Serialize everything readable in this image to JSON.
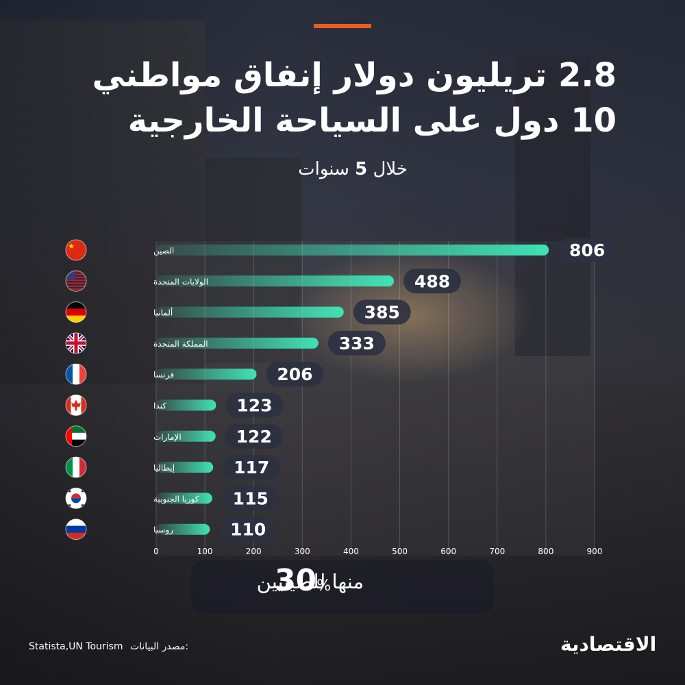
{
  "header": {
    "title_line1": "2.8 تريليون دولار إنفاق مواطني",
    "title_line2": "10 دول على السياحة الخارجية",
    "subtitle_prefix": "خلال",
    "subtitle_number": "5",
    "subtitle_suffix": "سنوات"
  },
  "colors": {
    "accent": "#ee5a24",
    "bar_end": "#3fe3b4",
    "bar_start": "rgba(63,227,180,0.15)",
    "value_pill": "#2c3140"
  },
  "chart_data": {
    "type": "bar",
    "orientation": "horizontal",
    "categories": [
      "الصين",
      "الولايات المتحدة",
      "ألمانيا",
      "المملكة المتحدة",
      "فرنسا",
      "كندا",
      "الإمارات",
      "إيطاليا",
      "كوريا الجنوبية",
      "روسيا"
    ],
    "flag_icons": [
      "china-flag-icon",
      "usa-flag-icon",
      "germany-flag-icon",
      "uk-flag-icon",
      "france-flag-icon",
      "canada-flag-icon",
      "uae-flag-icon",
      "italy-flag-icon",
      "south-korea-flag-icon",
      "russia-flag-icon"
    ],
    "values": [
      806,
      488,
      385,
      333,
      206,
      123,
      122,
      117,
      115,
      110
    ],
    "xlim": [
      0,
      900
    ],
    "xticks": [
      0,
      100,
      200,
      300,
      400,
      500,
      600,
      700,
      800,
      900
    ],
    "grid": true
  },
  "highlight": {
    "percent": "30",
    "percent_sign": "%",
    "text": "منها للصينيين"
  },
  "footer": {
    "source_label": "مصدر البيانات:",
    "source_value": "Statista,UN Tourism",
    "logo": "الاقتصادية"
  }
}
